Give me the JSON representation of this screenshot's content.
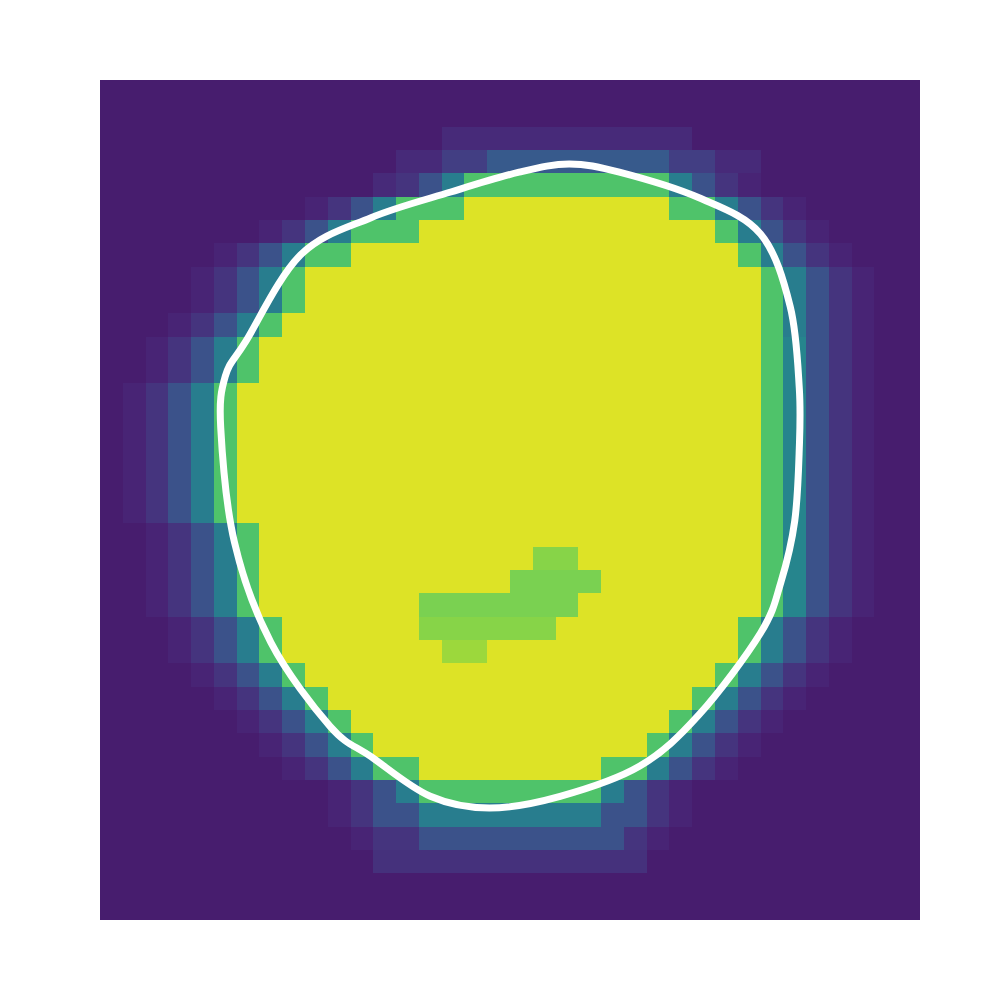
{
  "chart_data": {
    "type": "heatmap",
    "xlim": [
      0,
      36
    ],
    "ylim": [
      36,
      0
    ],
    "zlim": [
      0,
      100
    ],
    "tick_labels": false,
    "cells": [
      [
        8,
        8,
        8,
        8,
        8,
        8,
        8,
        8,
        8,
        8,
        8,
        8,
        8,
        8,
        8,
        8,
        8,
        8,
        8,
        8,
        8,
        8,
        8,
        8,
        8,
        8,
        8,
        8,
        8,
        8,
        8,
        8,
        8,
        8,
        8,
        8
      ],
      [
        8,
        8,
        8,
        8,
        8,
        8,
        8,
        8,
        8,
        8,
        8,
        8,
        8,
        8,
        8,
        8,
        8,
        8,
        8,
        8,
        8,
        8,
        8,
        8,
        8,
        8,
        8,
        8,
        8,
        8,
        8,
        8,
        8,
        8,
        8,
        8
      ],
      [
        8,
        8,
        8,
        8,
        8,
        8,
        8,
        8,
        8,
        8,
        8,
        8,
        8,
        8,
        8,
        12,
        12,
        12,
        12,
        12,
        12,
        12,
        12,
        12,
        12,
        12,
        8,
        8,
        8,
        8,
        8,
        8,
        8,
        8,
        8,
        8
      ],
      [
        8,
        8,
        8,
        8,
        8,
        8,
        8,
        8,
        8,
        8,
        8,
        8,
        8,
        12,
        12,
        18,
        18,
        28,
        28,
        28,
        28,
        28,
        28,
        28,
        28,
        18,
        18,
        12,
        12,
        8,
        8,
        8,
        8,
        8,
        8,
        8
      ],
      [
        8,
        8,
        8,
        8,
        8,
        8,
        8,
        8,
        8,
        8,
        8,
        8,
        12,
        15,
        25,
        42,
        72,
        72,
        72,
        72,
        72,
        72,
        72,
        72,
        72,
        42,
        25,
        15,
        10,
        8,
        8,
        8,
        8,
        8,
        8,
        8
      ],
      [
        8,
        8,
        8,
        8,
        8,
        8,
        8,
        8,
        8,
        10,
        15,
        25,
        42,
        72,
        72,
        72,
        95,
        95,
        95,
        95,
        95,
        95,
        95,
        95,
        95,
        72,
        72,
        42,
        25,
        15,
        10,
        8,
        8,
        8,
        8,
        8
      ],
      [
        8,
        8,
        8,
        8,
        8,
        8,
        8,
        10,
        15,
        25,
        42,
        72,
        72,
        72,
        95,
        95,
        95,
        95,
        95,
        95,
        95,
        95,
        95,
        95,
        95,
        95,
        95,
        72,
        42,
        25,
        15,
        10,
        8,
        8,
        8,
        8
      ],
      [
        8,
        8,
        8,
        8,
        8,
        10,
        15,
        25,
        42,
        72,
        72,
        95,
        95,
        95,
        95,
        95,
        95,
        95,
        95,
        95,
        95,
        95,
        95,
        95,
        95,
        95,
        95,
        95,
        72,
        42,
        25,
        15,
        10,
        8,
        8,
        8
      ],
      [
        8,
        8,
        8,
        8,
        10,
        15,
        25,
        42,
        72,
        95,
        95,
        95,
        95,
        95,
        95,
        95,
        95,
        95,
        95,
        95,
        95,
        95,
        95,
        95,
        95,
        95,
        95,
        95,
        95,
        72,
        42,
        25,
        15,
        10,
        8,
        8
      ],
      [
        8,
        8,
        8,
        8,
        10,
        15,
        25,
        42,
        72,
        95,
        95,
        95,
        95,
        95,
        95,
        95,
        95,
        95,
        95,
        95,
        95,
        95,
        95,
        95,
        95,
        95,
        95,
        95,
        95,
        72,
        42,
        25,
        15,
        10,
        8,
        8
      ],
      [
        8,
        8,
        8,
        10,
        15,
        25,
        42,
        72,
        95,
        95,
        95,
        95,
        95,
        95,
        95,
        95,
        95,
        95,
        95,
        95,
        95,
        95,
        95,
        95,
        95,
        95,
        95,
        95,
        95,
        72,
        42,
        25,
        15,
        10,
        8,
        8
      ],
      [
        8,
        8,
        10,
        15,
        25,
        42,
        72,
        95,
        95,
        95,
        95,
        95,
        95,
        95,
        95,
        95,
        95,
        95,
        95,
        95,
        95,
        95,
        95,
        95,
        95,
        95,
        95,
        95,
        95,
        72,
        45,
        25,
        15,
        10,
        8,
        8
      ],
      [
        8,
        8,
        10,
        15,
        25,
        42,
        72,
        95,
        95,
        95,
        95,
        95,
        95,
        95,
        95,
        95,
        95,
        95,
        95,
        95,
        95,
        95,
        95,
        95,
        95,
        95,
        95,
        95,
        95,
        72,
        45,
        25,
        15,
        10,
        8,
        8
      ],
      [
        8,
        10,
        15,
        25,
        42,
        72,
        95,
        95,
        95,
        95,
        95,
        95,
        95,
        95,
        95,
        95,
        95,
        95,
        95,
        95,
        95,
        95,
        95,
        95,
        95,
        95,
        95,
        95,
        95,
        72,
        45,
        25,
        15,
        10,
        8,
        8
      ],
      [
        8,
        10,
        15,
        25,
        42,
        72,
        95,
        95,
        95,
        95,
        95,
        95,
        95,
        95,
        95,
        95,
        95,
        95,
        95,
        95,
        95,
        95,
        95,
        95,
        95,
        95,
        95,
        95,
        95,
        72,
        45,
        25,
        15,
        10,
        8,
        8
      ],
      [
        8,
        10,
        15,
        25,
        42,
        72,
        95,
        95,
        95,
        95,
        95,
        95,
        95,
        95,
        95,
        95,
        95,
        95,
        95,
        95,
        95,
        95,
        95,
        95,
        95,
        95,
        95,
        95,
        95,
        72,
        45,
        25,
        15,
        10,
        8,
        8
      ],
      [
        8,
        10,
        15,
        25,
        42,
        72,
        95,
        95,
        95,
        95,
        95,
        95,
        95,
        95,
        95,
        95,
        95,
        95,
        95,
        95,
        95,
        95,
        95,
        95,
        95,
        95,
        95,
        95,
        95,
        72,
        45,
        25,
        15,
        10,
        8,
        8
      ],
      [
        8,
        10,
        15,
        25,
        42,
        72,
        95,
        95,
        95,
        95,
        95,
        95,
        95,
        95,
        95,
        95,
        95,
        95,
        95,
        95,
        95,
        95,
        95,
        95,
        95,
        95,
        95,
        95,
        95,
        72,
        45,
        25,
        15,
        10,
        8,
        8
      ],
      [
        8,
        10,
        15,
        25,
        42,
        72,
        95,
        95,
        95,
        95,
        95,
        95,
        95,
        95,
        95,
        95,
        95,
        95,
        95,
        95,
        95,
        95,
        95,
        95,
        95,
        95,
        95,
        95,
        95,
        72,
        45,
        25,
        15,
        10,
        8,
        8
      ],
      [
        8,
        8,
        10,
        15,
        25,
        42,
        72,
        95,
        95,
        95,
        95,
        95,
        95,
        95,
        95,
        95,
        95,
        95,
        95,
        95,
        95,
        95,
        95,
        95,
        95,
        95,
        95,
        95,
        95,
        72,
        45,
        25,
        15,
        10,
        8,
        8
      ],
      [
        8,
        8,
        10,
        15,
        25,
        42,
        72,
        95,
        95,
        95,
        95,
        95,
        95,
        95,
        95,
        95,
        95,
        95,
        95,
        82,
        82,
        95,
        95,
        95,
        95,
        95,
        95,
        95,
        95,
        72,
        45,
        25,
        15,
        10,
        8,
        8
      ],
      [
        8,
        8,
        10,
        15,
        25,
        42,
        72,
        95,
        95,
        95,
        95,
        95,
        95,
        95,
        95,
        95,
        95,
        95,
        80,
        80,
        80,
        80,
        95,
        95,
        95,
        95,
        95,
        95,
        95,
        72,
        45,
        25,
        15,
        10,
        8,
        8
      ],
      [
        8,
        8,
        10,
        15,
        25,
        42,
        72,
        95,
        95,
        95,
        95,
        95,
        95,
        95,
        80,
        80,
        80,
        80,
        80,
        80,
        80,
        95,
        95,
        95,
        95,
        95,
        95,
        95,
        95,
        72,
        45,
        25,
        15,
        10,
        8,
        8
      ],
      [
        8,
        8,
        8,
        10,
        15,
        25,
        42,
        72,
        95,
        95,
        95,
        95,
        95,
        95,
        82,
        82,
        82,
        82,
        82,
        82,
        95,
        95,
        95,
        95,
        95,
        95,
        95,
        95,
        72,
        42,
        25,
        15,
        10,
        8,
        8,
        8
      ],
      [
        8,
        8,
        8,
        10,
        15,
        25,
        42,
        72,
        95,
        95,
        95,
        95,
        95,
        95,
        95,
        85,
        85,
        95,
        95,
        95,
        95,
        95,
        95,
        95,
        95,
        95,
        95,
        95,
        72,
        42,
        25,
        15,
        10,
        8,
        8,
        8
      ],
      [
        8,
        8,
        8,
        8,
        10,
        15,
        25,
        42,
        72,
        95,
        95,
        95,
        95,
        95,
        95,
        95,
        95,
        95,
        95,
        95,
        95,
        95,
        95,
        95,
        95,
        95,
        95,
        72,
        42,
        25,
        15,
        10,
        8,
        8,
        8,
        8
      ],
      [
        8,
        8,
        8,
        8,
        8,
        10,
        15,
        25,
        42,
        72,
        95,
        95,
        95,
        95,
        95,
        95,
        95,
        95,
        95,
        95,
        95,
        95,
        95,
        95,
        95,
        95,
        72,
        42,
        25,
        15,
        10,
        8,
        8,
        8,
        8,
        8
      ],
      [
        8,
        8,
        8,
        8,
        8,
        8,
        10,
        15,
        25,
        42,
        72,
        95,
        95,
        95,
        95,
        95,
        95,
        95,
        95,
        95,
        95,
        95,
        95,
        95,
        95,
        72,
        42,
        25,
        15,
        10,
        8,
        8,
        8,
        8,
        8,
        8
      ],
      [
        8,
        8,
        8,
        8,
        8,
        8,
        8,
        10,
        15,
        25,
        42,
        72,
        95,
        95,
        95,
        95,
        95,
        95,
        95,
        95,
        95,
        95,
        95,
        95,
        72,
        42,
        25,
        15,
        10,
        8,
        8,
        8,
        8,
        8,
        8,
        8
      ],
      [
        8,
        8,
        8,
        8,
        8,
        8,
        8,
        8,
        10,
        15,
        25,
        42,
        72,
        72,
        95,
        95,
        95,
        95,
        95,
        95,
        95,
        95,
        72,
        72,
        42,
        25,
        15,
        10,
        8,
        8,
        8,
        8,
        8,
        8,
        8,
        8
      ],
      [
        8,
        8,
        8,
        8,
        8,
        8,
        8,
        8,
        8,
        8,
        10,
        15,
        25,
        42,
        72,
        72,
        72,
        72,
        72,
        72,
        72,
        72,
        42,
        25,
        15,
        10,
        8,
        8,
        8,
        8,
        8,
        8,
        8,
        8,
        8,
        8
      ],
      [
        8,
        8,
        8,
        8,
        8,
        8,
        8,
        8,
        8,
        8,
        10,
        15,
        25,
        25,
        42,
        42,
        42,
        42,
        42,
        42,
        42,
        42,
        25,
        25,
        15,
        10,
        8,
        8,
        8,
        8,
        8,
        8,
        8,
        8,
        8,
        8
      ],
      [
        8,
        8,
        8,
        8,
        8,
        8,
        8,
        8,
        8,
        8,
        8,
        10,
        15,
        15,
        25,
        25,
        25,
        25,
        25,
        25,
        25,
        25,
        25,
        15,
        10,
        8,
        8,
        8,
        8,
        8,
        8,
        8,
        8,
        8,
        8,
        8
      ],
      [
        8,
        8,
        8,
        8,
        8,
        8,
        8,
        8,
        8,
        8,
        8,
        8,
        14,
        14,
        14,
        14,
        14,
        14,
        14,
        14,
        14,
        14,
        14,
        14,
        8,
        8,
        8,
        8,
        8,
        8,
        8,
        8,
        8,
        8,
        8,
        8
      ],
      [
        8,
        8,
        8,
        8,
        8,
        8,
        8,
        8,
        8,
        8,
        8,
        8,
        8,
        8,
        8,
        8,
        8,
        8,
        8,
        8,
        8,
        8,
        8,
        8,
        8,
        8,
        8,
        8,
        8,
        8,
        8,
        8,
        8,
        8,
        8,
        8
      ],
      [
        8,
        8,
        8,
        8,
        8,
        8,
        8,
        8,
        8,
        8,
        8,
        8,
        8,
        8,
        8,
        8,
        8,
        8,
        8,
        8,
        8,
        8,
        8,
        8,
        8,
        8,
        8,
        8,
        8,
        8,
        8,
        8,
        8,
        8,
        8,
        8
      ]
    ],
    "contour": {
      "color": "#ffffff",
      "x": [
        20.6,
        22.8,
        26.3,
        29.0,
        30.3,
        30.7,
        30.7,
        30.5,
        29.9,
        29.0,
        26.3,
        23.7,
        20.2,
        17.1,
        14.5,
        11.9,
        10.1,
        7.5,
        5.9,
        5.3,
        5.5,
        6.4,
        8.8,
        11.9,
        15.4,
        18.4
      ],
      "y": [
        3.6,
        3.95,
        5.05,
        6.6,
        9.7,
        13.2,
        15.8,
        18.9,
        21.5,
        23.7,
        27.2,
        29.4,
        30.7,
        31.2,
        30.7,
        29.0,
        27.7,
        24.1,
        19.8,
        14.9,
        12.7,
        11.2,
        7.5,
        5.9,
        4.8,
        3.95
      ]
    }
  }
}
